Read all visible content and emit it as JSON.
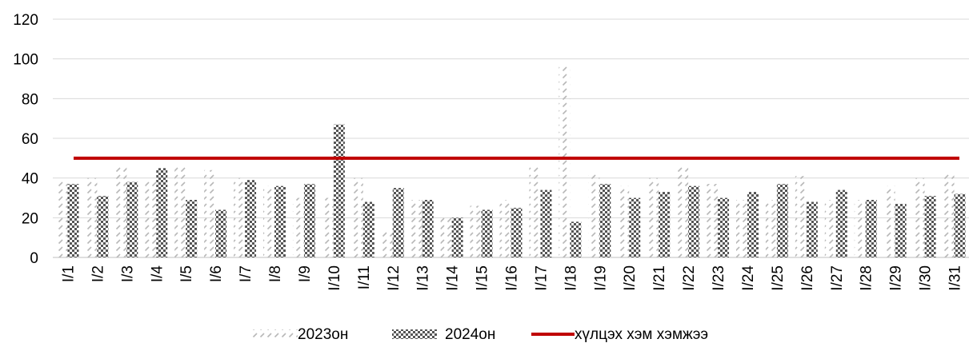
{
  "chart_data": {
    "type": "bar",
    "title": "",
    "xlabel": "",
    "ylabel": "",
    "ylim": [
      0,
      120
    ],
    "yticks": [
      0,
      20,
      40,
      60,
      80,
      100,
      120
    ],
    "grid": true,
    "legend_position": "bottom",
    "categories": [
      "I/1",
      "I/2",
      "I/3",
      "I/4",
      "I/5",
      "I/6",
      "I/7",
      "I/8",
      "I/9",
      "I/10",
      "I/11",
      "I/12",
      "I/13",
      "I/14",
      "I/15",
      "I/16",
      "I/17",
      "I/18",
      "I/19",
      "I/20",
      "I/21",
      "I/22",
      "I/23",
      "I/24",
      "I/25",
      "I/26",
      "I/27",
      "I/28",
      "I/29",
      "I/30",
      "I/31"
    ],
    "series": [
      {
        "name": "2023он",
        "color": "#c8c8c8",
        "pattern": "diagonal-dashes",
        "values": [
          39,
          40,
          46,
          39,
          46,
          44,
          40,
          36,
          30,
          30,
          40,
          13,
          29,
          20,
          26,
          29,
          46,
          97,
          42,
          36,
          40,
          46,
          37,
          29,
          29,
          41,
          29,
          29,
          36,
          40,
          42
        ]
      },
      {
        "name": "2024он",
        "color": "#555555",
        "pattern": "dotted-checker",
        "values": [
          37,
          31,
          38,
          45,
          29,
          24,
          39,
          36,
          37,
          67,
          28,
          35,
          29,
          20,
          24,
          25,
          34,
          18,
          37,
          30,
          33,
          36,
          30,
          33,
          37,
          28,
          34,
          29,
          27,
          31,
          32
        ]
      }
    ],
    "threshold": {
      "name": "хүлцэх хэм хэмжээ",
      "value": 50,
      "color": "#c00000"
    }
  }
}
